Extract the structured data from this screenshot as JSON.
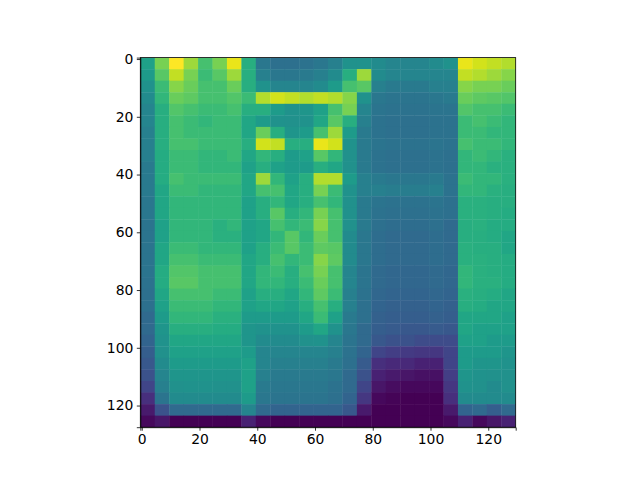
{
  "chart_data": {
    "type": "heatmap",
    "x_bins": [
      -0.5,
      4.5,
      9.5,
      14.5,
      19.5,
      24.5,
      29.5,
      34.5,
      39.5,
      44.5,
      49.5,
      54.5,
      59.5,
      64.5,
      69.5,
      74.5,
      79.5,
      84.5,
      89.5,
      94.5,
      99.5,
      104.5,
      109.5,
      114.5,
      119.5,
      124.5,
      129.5
    ],
    "y_bins": [
      -0.5,
      3.5,
      7.5,
      11.5,
      15.5,
      19.5,
      23.5,
      27.5,
      31.5,
      35.5,
      39.5,
      43.5,
      47.5,
      51.5,
      55.5,
      59.5,
      63.5,
      67.5,
      71.5,
      75.5,
      79.5,
      83.5,
      87.5,
      91.5,
      95.5,
      99.5,
      103.5,
      107.5,
      111.5,
      115.5,
      119.5,
      123.5,
      127.5
    ],
    "z": [
      [
        0.5,
        0.7,
        0.88,
        0.75,
        0.62,
        0.7,
        0.85,
        0.55,
        0.35,
        0.32,
        0.32,
        0.33,
        0.35,
        0.38,
        0.45,
        0.45,
        0.42,
        0.4,
        0.4,
        0.4,
        0.42,
        0.45,
        0.85,
        0.82,
        0.8,
        0.78
      ],
      [
        0.48,
        0.65,
        0.8,
        0.7,
        0.6,
        0.65,
        0.75,
        0.55,
        0.38,
        0.35,
        0.35,
        0.36,
        0.38,
        0.42,
        0.55,
        0.75,
        0.42,
        0.4,
        0.4,
        0.4,
        0.4,
        0.4,
        0.8,
        0.78,
        0.75,
        0.72
      ],
      [
        0.45,
        0.6,
        0.72,
        0.68,
        0.62,
        0.62,
        0.68,
        0.55,
        0.45,
        0.4,
        0.4,
        0.4,
        0.42,
        0.48,
        0.62,
        0.65,
        0.38,
        0.36,
        0.36,
        0.36,
        0.38,
        0.38,
        0.72,
        0.7,
        0.7,
        0.68
      ],
      [
        0.42,
        0.58,
        0.68,
        0.66,
        0.62,
        0.62,
        0.64,
        0.6,
        0.78,
        0.82,
        0.8,
        0.78,
        0.8,
        0.78,
        0.72,
        0.45,
        0.35,
        0.34,
        0.34,
        0.34,
        0.35,
        0.36,
        0.68,
        0.66,
        0.65,
        0.64
      ],
      [
        0.4,
        0.55,
        0.64,
        0.62,
        0.6,
        0.6,
        0.62,
        0.55,
        0.55,
        0.48,
        0.45,
        0.46,
        0.5,
        0.62,
        0.7,
        0.4,
        0.34,
        0.33,
        0.33,
        0.33,
        0.34,
        0.34,
        0.64,
        0.62,
        0.62,
        0.6
      ],
      [
        0.4,
        0.55,
        0.62,
        0.6,
        0.58,
        0.6,
        0.6,
        0.52,
        0.48,
        0.45,
        0.44,
        0.45,
        0.52,
        0.65,
        0.55,
        0.38,
        0.33,
        0.32,
        0.32,
        0.32,
        0.33,
        0.33,
        0.6,
        0.62,
        0.6,
        0.58
      ],
      [
        0.38,
        0.55,
        0.62,
        0.6,
        0.6,
        0.6,
        0.6,
        0.52,
        0.68,
        0.55,
        0.46,
        0.48,
        0.62,
        0.75,
        0.48,
        0.36,
        0.33,
        0.32,
        0.32,
        0.32,
        0.33,
        0.33,
        0.6,
        0.6,
        0.58,
        0.58
      ],
      [
        0.38,
        0.55,
        0.62,
        0.62,
        0.6,
        0.6,
        0.6,
        0.55,
        0.82,
        0.8,
        0.55,
        0.55,
        0.85,
        0.82,
        0.45,
        0.36,
        0.34,
        0.33,
        0.33,
        0.33,
        0.34,
        0.33,
        0.62,
        0.6,
        0.6,
        0.58
      ],
      [
        0.38,
        0.54,
        0.6,
        0.6,
        0.58,
        0.58,
        0.6,
        0.52,
        0.58,
        0.55,
        0.48,
        0.5,
        0.65,
        0.58,
        0.44,
        0.36,
        0.33,
        0.32,
        0.32,
        0.32,
        0.33,
        0.32,
        0.58,
        0.6,
        0.58,
        0.56
      ],
      [
        0.36,
        0.54,
        0.6,
        0.6,
        0.58,
        0.58,
        0.58,
        0.5,
        0.55,
        0.5,
        0.48,
        0.48,
        0.55,
        0.52,
        0.44,
        0.36,
        0.33,
        0.32,
        0.32,
        0.32,
        0.33,
        0.32,
        0.58,
        0.58,
        0.56,
        0.56
      ],
      [
        0.36,
        0.54,
        0.62,
        0.6,
        0.6,
        0.6,
        0.6,
        0.52,
        0.75,
        0.58,
        0.5,
        0.55,
        0.78,
        0.78,
        0.48,
        0.38,
        0.36,
        0.35,
        0.35,
        0.35,
        0.36,
        0.33,
        0.6,
        0.58,
        0.58,
        0.56
      ],
      [
        0.36,
        0.52,
        0.6,
        0.6,
        0.58,
        0.58,
        0.58,
        0.52,
        0.62,
        0.62,
        0.52,
        0.55,
        0.7,
        0.6,
        0.45,
        0.38,
        0.38,
        0.37,
        0.37,
        0.37,
        0.38,
        0.33,
        0.58,
        0.58,
        0.56,
        0.55
      ],
      [
        0.35,
        0.52,
        0.58,
        0.58,
        0.58,
        0.58,
        0.58,
        0.5,
        0.55,
        0.58,
        0.52,
        0.55,
        0.62,
        0.58,
        0.44,
        0.36,
        0.34,
        0.33,
        0.33,
        0.33,
        0.34,
        0.32,
        0.56,
        0.56,
        0.55,
        0.55
      ],
      [
        0.35,
        0.52,
        0.58,
        0.58,
        0.58,
        0.58,
        0.58,
        0.5,
        0.55,
        0.65,
        0.55,
        0.58,
        0.7,
        0.62,
        0.44,
        0.36,
        0.33,
        0.32,
        0.32,
        0.32,
        0.33,
        0.32,
        0.56,
        0.56,
        0.55,
        0.54
      ],
      [
        0.34,
        0.5,
        0.58,
        0.58,
        0.58,
        0.56,
        0.58,
        0.5,
        0.52,
        0.62,
        0.58,
        0.6,
        0.72,
        0.62,
        0.44,
        0.36,
        0.32,
        0.31,
        0.31,
        0.31,
        0.32,
        0.3,
        0.55,
        0.56,
        0.54,
        0.54
      ],
      [
        0.34,
        0.5,
        0.58,
        0.58,
        0.58,
        0.56,
        0.56,
        0.5,
        0.52,
        0.58,
        0.65,
        0.58,
        0.68,
        0.62,
        0.42,
        0.35,
        0.31,
        0.3,
        0.3,
        0.3,
        0.31,
        0.3,
        0.55,
        0.55,
        0.54,
        0.52
      ],
      [
        0.34,
        0.52,
        0.6,
        0.6,
        0.58,
        0.58,
        0.58,
        0.5,
        0.55,
        0.6,
        0.65,
        0.6,
        0.66,
        0.65,
        0.42,
        0.35,
        0.31,
        0.3,
        0.3,
        0.3,
        0.31,
        0.3,
        0.56,
        0.55,
        0.55,
        0.52
      ],
      [
        0.34,
        0.52,
        0.62,
        0.62,
        0.6,
        0.6,
        0.6,
        0.52,
        0.55,
        0.62,
        0.58,
        0.6,
        0.72,
        0.66,
        0.42,
        0.35,
        0.31,
        0.3,
        0.3,
        0.3,
        0.31,
        0.3,
        0.56,
        0.56,
        0.55,
        0.54
      ],
      [
        0.34,
        0.54,
        0.64,
        0.64,
        0.62,
        0.62,
        0.62,
        0.52,
        0.58,
        0.6,
        0.55,
        0.62,
        0.7,
        0.62,
        0.4,
        0.34,
        0.3,
        0.29,
        0.29,
        0.29,
        0.3,
        0.29,
        0.58,
        0.56,
        0.55,
        0.54
      ],
      [
        0.33,
        0.54,
        0.65,
        0.65,
        0.62,
        0.62,
        0.62,
        0.52,
        0.58,
        0.58,
        0.55,
        0.6,
        0.68,
        0.62,
        0.4,
        0.34,
        0.3,
        0.29,
        0.29,
        0.29,
        0.3,
        0.29,
        0.58,
        0.56,
        0.56,
        0.54
      ],
      [
        0.32,
        0.52,
        0.62,
        0.62,
        0.62,
        0.6,
        0.6,
        0.5,
        0.55,
        0.55,
        0.52,
        0.58,
        0.66,
        0.6,
        0.38,
        0.33,
        0.29,
        0.28,
        0.28,
        0.28,
        0.29,
        0.28,
        0.56,
        0.55,
        0.54,
        0.52
      ],
      [
        0.32,
        0.5,
        0.6,
        0.6,
        0.6,
        0.58,
        0.58,
        0.5,
        0.52,
        0.52,
        0.5,
        0.55,
        0.62,
        0.55,
        0.38,
        0.32,
        0.28,
        0.27,
        0.27,
        0.27,
        0.28,
        0.27,
        0.55,
        0.54,
        0.52,
        0.52
      ],
      [
        0.3,
        0.48,
        0.58,
        0.58,
        0.58,
        0.56,
        0.56,
        0.48,
        0.48,
        0.48,
        0.48,
        0.52,
        0.6,
        0.5,
        0.36,
        0.32,
        0.27,
        0.26,
        0.26,
        0.26,
        0.27,
        0.26,
        0.52,
        0.52,
        0.52,
        0.5
      ],
      [
        0.3,
        0.46,
        0.55,
        0.55,
        0.55,
        0.54,
        0.54,
        0.46,
        0.45,
        0.45,
        0.45,
        0.48,
        0.52,
        0.45,
        0.35,
        0.3,
        0.26,
        0.25,
        0.24,
        0.24,
        0.25,
        0.24,
        0.52,
        0.5,
        0.5,
        0.5
      ],
      [
        0.28,
        0.45,
        0.52,
        0.52,
        0.52,
        0.52,
        0.52,
        0.46,
        0.42,
        0.42,
        0.42,
        0.44,
        0.45,
        0.4,
        0.34,
        0.3,
        0.24,
        0.22,
        0.22,
        0.2,
        0.2,
        0.2,
        0.5,
        0.5,
        0.48,
        0.48
      ],
      [
        0.26,
        0.44,
        0.5,
        0.5,
        0.5,
        0.5,
        0.5,
        0.48,
        0.4,
        0.4,
        0.4,
        0.4,
        0.4,
        0.38,
        0.33,
        0.28,
        0.18,
        0.16,
        0.15,
        0.14,
        0.14,
        0.18,
        0.48,
        0.48,
        0.48,
        0.46
      ],
      [
        0.24,
        0.42,
        0.48,
        0.48,
        0.48,
        0.48,
        0.48,
        0.5,
        0.4,
        0.38,
        0.38,
        0.38,
        0.38,
        0.36,
        0.32,
        0.25,
        0.12,
        0.1,
        0.1,
        0.08,
        0.08,
        0.18,
        0.48,
        0.46,
        0.46,
        0.45
      ],
      [
        0.22,
        0.4,
        0.46,
        0.46,
        0.46,
        0.46,
        0.46,
        0.5,
        0.38,
        0.36,
        0.36,
        0.36,
        0.36,
        0.35,
        0.3,
        0.22,
        0.08,
        0.06,
        0.05,
        0.04,
        0.04,
        0.16,
        0.46,
        0.45,
        0.44,
        0.44
      ],
      [
        0.18,
        0.38,
        0.44,
        0.45,
        0.45,
        0.44,
        0.44,
        0.5,
        0.36,
        0.35,
        0.35,
        0.35,
        0.35,
        0.33,
        0.3,
        0.18,
        0.05,
        0.03,
        0.02,
        0.02,
        0.02,
        0.14,
        0.45,
        0.44,
        0.42,
        0.44
      ],
      [
        0.12,
        0.34,
        0.42,
        0.42,
        0.42,
        0.42,
        0.42,
        0.48,
        0.35,
        0.34,
        0.34,
        0.34,
        0.34,
        0.32,
        0.28,
        0.14,
        0.02,
        0.01,
        0.0,
        0.0,
        0.0,
        0.12,
        0.42,
        0.42,
        0.42,
        0.42
      ],
      [
        0.06,
        0.22,
        0.3,
        0.3,
        0.3,
        0.3,
        0.3,
        0.4,
        0.3,
        0.28,
        0.28,
        0.28,
        0.28,
        0.28,
        0.24,
        0.06,
        0.0,
        0.0,
        0.0,
        0.0,
        0.0,
        0.06,
        0.28,
        0.3,
        0.26,
        0.3
      ],
      [
        0.02,
        0.05,
        0.0,
        0.0,
        0.0,
        0.0,
        0.0,
        0.08,
        0.02,
        0.0,
        0.0,
        0.0,
        0.0,
        0.0,
        0.0,
        0.0,
        0.0,
        0.0,
        0.0,
        0.0,
        0.0,
        0.02,
        0.08,
        0.02,
        0.05,
        0.08
      ]
    ],
    "xlim": [
      -0.5,
      129.5
    ],
    "ylim": [
      127.5,
      -0.5
    ],
    "xticks": [
      0,
      20,
      40,
      60,
      80,
      100,
      120
    ],
    "yticks": [
      0,
      20,
      40,
      60,
      80,
      100,
      120
    ]
  }
}
